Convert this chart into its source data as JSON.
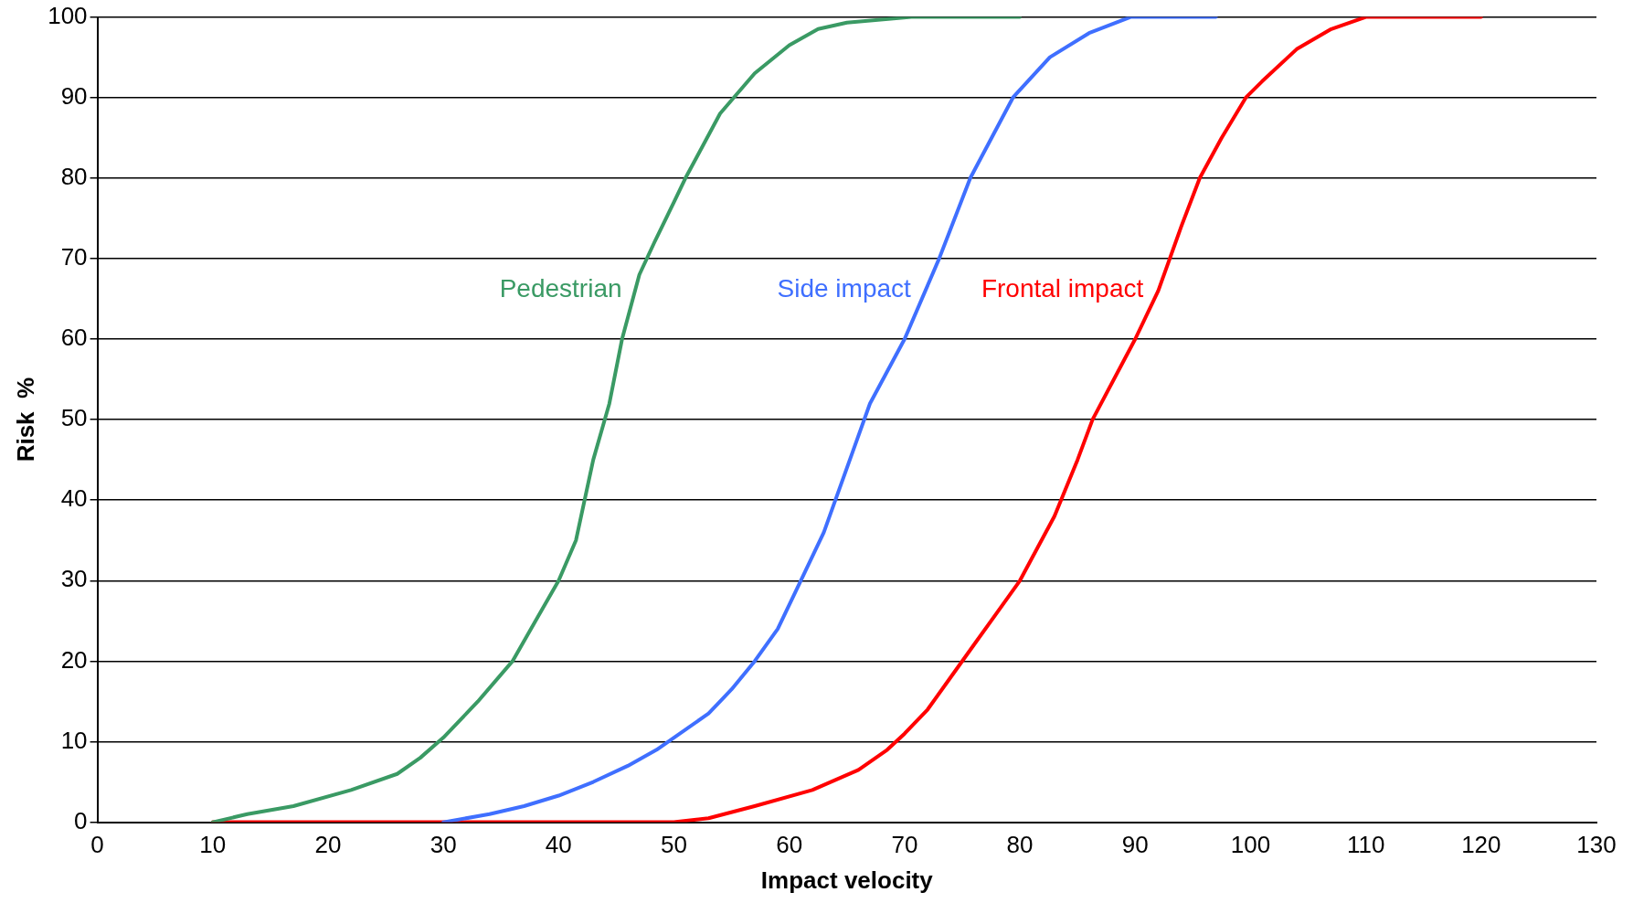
{
  "chart_data": {
    "type": "line",
    "xlabel": "Impact velocity",
    "ylabel": "Risk  %",
    "xlim": [
      0,
      130
    ],
    "xticks": [
      0,
      10,
      20,
      30,
      40,
      50,
      60,
      70,
      80,
      90,
      100,
      110,
      120,
      130
    ],
    "ylim": [
      0,
      100
    ],
    "yticks": [
      0,
      10,
      20,
      30,
      40,
      50,
      60,
      70,
      80,
      90,
      100
    ],
    "grid": "y",
    "legend": false,
    "marker": "none",
    "line_style": "solid",
    "series": [
      {
        "name": "Pedestrian",
        "color": "#3a9a64",
        "x": [
          10,
          13,
          17,
          22,
          26,
          28,
          30,
          33,
          36,
          38,
          40,
          41.5,
          43,
          44.4,
          45.5,
          47,
          48.3,
          50,
          51,
          54,
          57,
          60,
          62.5,
          65,
          70.6,
          80
        ],
        "values": [
          0,
          1,
          2,
          4,
          6,
          8,
          10.5,
          15,
          20,
          25,
          30,
          35,
          45,
          52,
          60,
          68,
          72,
          77,
          80,
          88,
          93,
          96.5,
          98.5,
          99.3,
          100,
          100
        ]
      },
      {
        "name": "Side impact",
        "color": "#3f6fff",
        "x": [
          30,
          34,
          37,
          40,
          43,
          46,
          48.5,
          50,
          53,
          55,
          57,
          59,
          61,
          63,
          64,
          65.5,
          67,
          70,
          73,
          75.7,
          79.4,
          82.6,
          86,
          89.6,
          97
        ],
        "values": [
          0,
          1,
          2,
          3.3,
          5,
          7,
          9,
          10.5,
          13.5,
          16.5,
          20,
          24,
          30,
          36,
          40,
          46,
          52,
          60,
          70,
          80,
          90,
          95,
          98,
          100,
          100
        ]
      },
      {
        "name": "Frontal impact",
        "color": "#ff0000",
        "x": [
          10,
          40,
          50,
          53,
          57,
          62,
          66,
          68.5,
          70,
          72,
          74,
          76,
          78,
          80,
          83,
          85,
          86.3,
          90,
          92,
          94,
          95.6,
          97.5,
          99.6,
          101,
          104,
          107,
          110,
          120
        ],
        "values": [
          0,
          0,
          0,
          0.5,
          2,
          4,
          6.5,
          9,
          11,
          14,
          18,
          22,
          26,
          30,
          38,
          45,
          50,
          60,
          66,
          74,
          80,
          85,
          90,
          92,
          96,
          98.5,
          100,
          100
        ]
      }
    ]
  }
}
